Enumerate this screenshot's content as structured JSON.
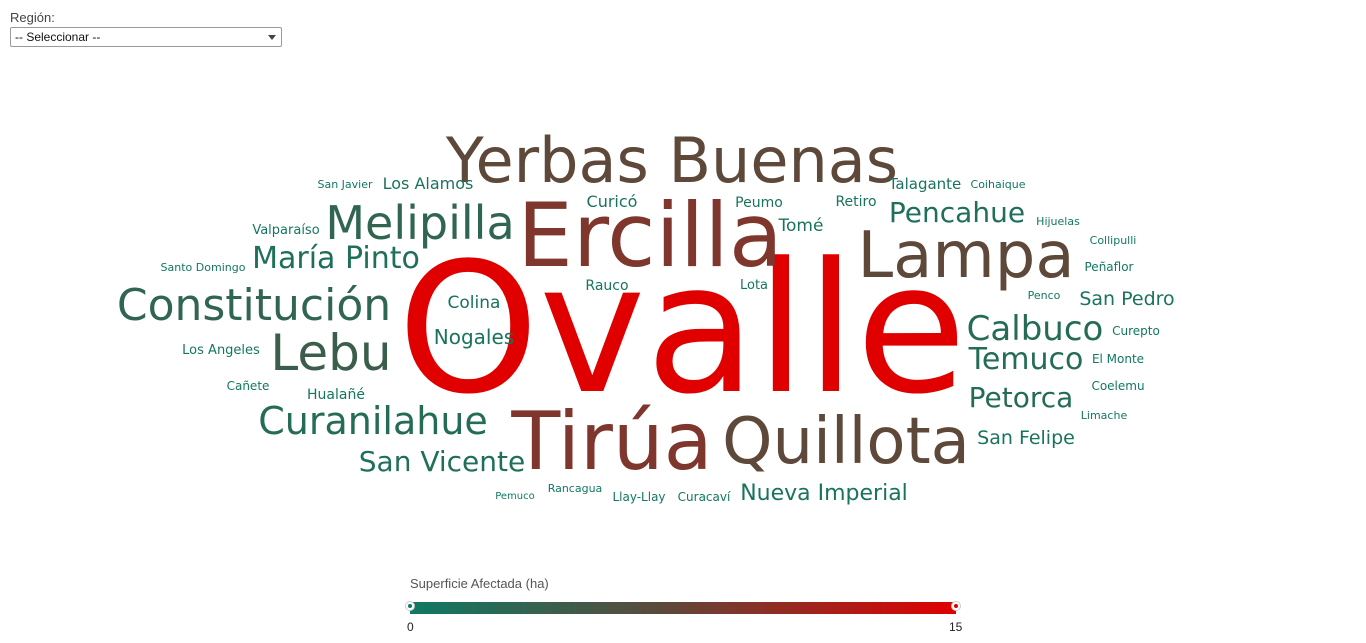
{
  "filter": {
    "label": "Región:",
    "selected": "-- Seleccionar --"
  },
  "legend": {
    "title": "Superficie Afectada (ha)",
    "min_label": "0",
    "max_label": "15",
    "color_low": "#0e7a63",
    "color_mid": "#5a4a3c",
    "color_high": "#e00000"
  },
  "chart_data": {
    "type": "wordcloud",
    "value_range": [
      0,
      15
    ],
    "words": [
      {
        "text": "Ovalle",
        "value": 15
      },
      {
        "text": "Ercilla",
        "value": 9
      },
      {
        "text": "Tirúa",
        "value": 9
      },
      {
        "text": "Yerbas Buenas",
        "value": 7
      },
      {
        "text": "Lampa",
        "value": 7
      },
      {
        "text": "Quillota",
        "value": 7
      },
      {
        "text": "Melipilla",
        "value": 3
      },
      {
        "text": "Constitución",
        "value": 3
      },
      {
        "text": "Lebu",
        "value": 4
      },
      {
        "text": "Curanilahue",
        "value": 2
      },
      {
        "text": "María Pinto",
        "value": 1.5
      },
      {
        "text": "San Vicente",
        "value": 1.5
      },
      {
        "text": "Pencahue",
        "value": 1.5
      },
      {
        "text": "Calbuco",
        "value": 2
      },
      {
        "text": "Temuco",
        "value": 2
      },
      {
        "text": "Petorca",
        "value": 2
      },
      {
        "text": "Nueva Imperial",
        "value": 1
      },
      {
        "text": "San Felipe",
        "value": 1
      },
      {
        "text": "San Pedro",
        "value": 1
      },
      {
        "text": "Colina",
        "value": 1
      },
      {
        "text": "Nogales",
        "value": 1
      },
      {
        "text": "Los Alamos",
        "value": 1
      },
      {
        "text": "Curicó",
        "value": 1
      },
      {
        "text": "Peumo",
        "value": 1
      },
      {
        "text": "Retiro",
        "value": 1
      },
      {
        "text": "Tomé",
        "value": 1
      },
      {
        "text": "Talagante",
        "value": 1
      },
      {
        "text": "Rauco",
        "value": 0.5
      },
      {
        "text": "Lota",
        "value": 0.5
      },
      {
        "text": "Hualañé",
        "value": 0.5
      },
      {
        "text": "Los Angeles",
        "value": 0.5
      },
      {
        "text": "Valparaíso",
        "value": 0.5
      },
      {
        "text": "San Javier",
        "value": 0.3
      },
      {
        "text": "Santo Domingo",
        "value": 0.3
      },
      {
        "text": "Cañete",
        "value": 0.3
      },
      {
        "text": "Coihaique",
        "value": 0.3
      },
      {
        "text": "Hijuelas",
        "value": 0.3
      },
      {
        "text": "Collipulli",
        "value": 0.3
      },
      {
        "text": "Peñaflor",
        "value": 0.3
      },
      {
        "text": "Penco",
        "value": 0.3
      },
      {
        "text": "Curepto",
        "value": 0.3
      },
      {
        "text": "El Monte",
        "value": 0.3
      },
      {
        "text": "Coelemu",
        "value": 0.3
      },
      {
        "text": "Limache",
        "value": 0.3
      },
      {
        "text": "Pemuco",
        "value": 0.3
      },
      {
        "text": "Rancagua",
        "value": 0.3
      },
      {
        "text": "Llay-Llay",
        "value": 0.3
      },
      {
        "text": "Curacaví",
        "value": 0.3
      }
    ]
  }
}
